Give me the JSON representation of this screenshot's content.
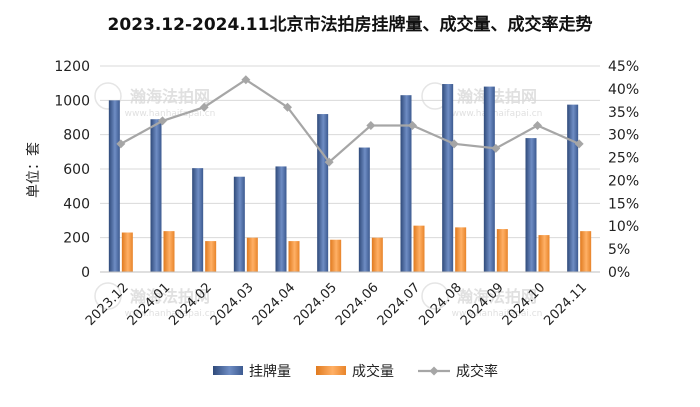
{
  "chart_data": {
    "type": "bar",
    "title": "2023.12-2024.11北京市法拍房挂牌量、成交量、成交率走势",
    "ylabel": "单位：套",
    "categories": [
      "2023.12",
      "2024.01",
      "2024.02",
      "2024.03",
      "2024.04",
      "2024.05",
      "2024.06",
      "2024.07",
      "2024.08",
      "2024.09",
      "2024.10",
      "2024.11"
    ],
    "ylim": [
      0,
      1200
    ],
    "yticks": [
      "0",
      "200",
      "400",
      "600",
      "800",
      "1000",
      "1200"
    ],
    "y2lim": [
      0,
      0.45
    ],
    "y2ticks": [
      "0%",
      "5%",
      "10%",
      "15%",
      "20%",
      "25%",
      "30%",
      "35%",
      "40%",
      "45%"
    ],
    "series": [
      {
        "name": "挂牌量",
        "kind": "bar",
        "axis": "left",
        "color": "#3f5f95",
        "values": [
          1000,
          890,
          605,
          555,
          615,
          920,
          725,
          1030,
          1095,
          1080,
          780,
          975
        ]
      },
      {
        "name": "成交量",
        "kind": "bar",
        "axis": "left",
        "color": "#f08a2e",
        "values": [
          230,
          238,
          180,
          200,
          180,
          188,
          200,
          270,
          260,
          250,
          215,
          238
        ]
      },
      {
        "name": "成交率",
        "kind": "line",
        "axis": "right",
        "color": "#a6a6a6",
        "values": [
          0.28,
          0.33,
          0.36,
          0.42,
          0.36,
          0.24,
          0.32,
          0.32,
          0.28,
          0.27,
          0.32,
          0.28
        ]
      }
    ],
    "legend_position": "bottom",
    "grid": true
  },
  "watermark": {
    "name": "瀚海法拍网",
    "url": "www.hanhaifapai.cn"
  }
}
